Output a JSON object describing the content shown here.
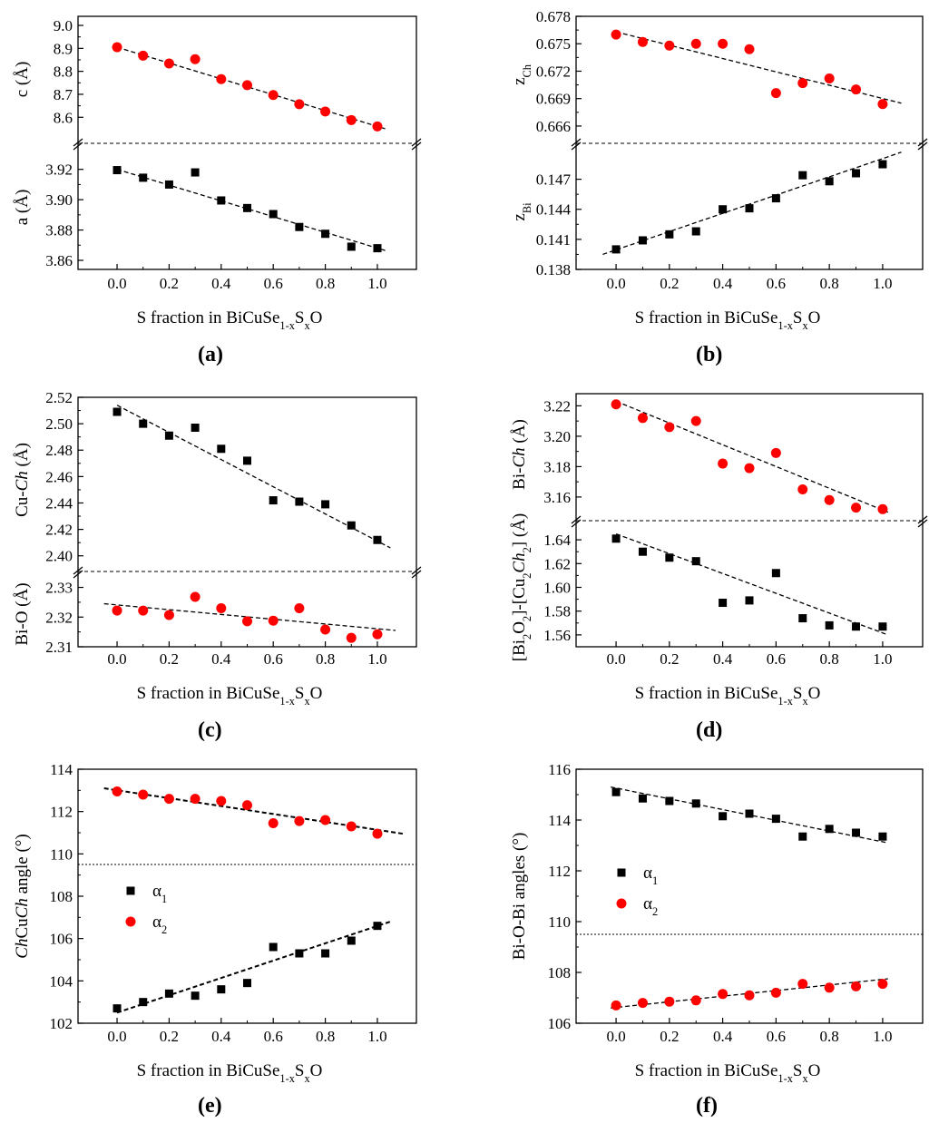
{
  "colors": {
    "series_square": "#000000",
    "series_circle": "#ff0000",
    "axis": "#000000"
  },
  "panel_labels": [
    "(a)",
    "(b)",
    "(c)",
    "(d)",
    "(e)",
    "(f)"
  ],
  "chart_data": [
    {
      "panel": "a",
      "type": "scatter",
      "xlabel": "S fraction in BiCuSe1-xSxO",
      "x_ticks": [
        "0.0",
        "0.2",
        "0.4",
        "0.6",
        "0.8",
        "1.0"
      ],
      "xlim": [
        -0.15,
        1.15
      ],
      "subplots": [
        {
          "ylabel": "c (Å)",
          "ylim": [
            8.53,
            9.0
          ],
          "y_ticks": [
            "8.6",
            "8.7",
            "8.8",
            "8.9",
            "9.0"
          ],
          "series": [
            {
              "name": "c",
              "marker": "circle",
              "color": "#ff0000",
              "x": [
                0,
                0.1,
                0.2,
                0.3,
                0.4,
                0.5,
                0.6,
                0.7,
                0.8,
                0.9,
                1.0
              ],
              "y": [
                8.905,
                8.868,
                8.834,
                8.853,
                8.766,
                8.74,
                8.697,
                8.657,
                8.625,
                8.588,
                8.56
              ]
            }
          ],
          "fit": {
            "x": [
              0,
              1.03
            ],
            "y": [
              8.905,
              8.55
            ]
          }
        },
        {
          "ylabel": "a (Å)",
          "ylim": [
            3.86,
            3.93
          ],
          "y_ticks": [
            "3.86",
            "3.88",
            "3.90",
            "3.92"
          ],
          "series": [
            {
              "name": "a",
              "marker": "square",
              "color": "#000000",
              "x": [
                0,
                0.1,
                0.2,
                0.3,
                0.4,
                0.5,
                0.6,
                0.7,
                0.8,
                0.9,
                1.0
              ],
              "y": [
                3.9195,
                3.9145,
                3.91,
                3.918,
                3.8995,
                3.8945,
                3.8905,
                3.882,
                3.8775,
                3.869,
                3.868
              ]
            }
          ],
          "fit": {
            "x": [
              0,
              1.03
            ],
            "y": [
              3.92,
              3.8665
            ]
          }
        }
      ]
    },
    {
      "panel": "b",
      "type": "scatter",
      "xlabel": "S fraction in BiCuSe1-xSxO",
      "x_ticks": [
        "0.0",
        "0.2",
        "0.4",
        "0.6",
        "0.8",
        "1.0"
      ],
      "xlim": [
        -0.15,
        1.15
      ],
      "subplots": [
        {
          "ylabel": "zCh",
          "ylim": [
            0.6652,
            0.678
          ],
          "y_ticks": [
            "0.666",
            "0.669",
            "0.672",
            "0.675",
            "0.678"
          ],
          "series": [
            {
              "name": "zCh",
              "marker": "circle",
              "color": "#ff0000",
              "x": [
                0,
                0.1,
                0.2,
                0.3,
                0.4,
                0.5,
                0.6,
                0.7,
                0.8,
                0.9,
                1.0
              ],
              "y": [
                0.676,
                0.6752,
                0.6748,
                0.675,
                0.675,
                0.6744,
                0.6696,
                0.6707,
                0.6712,
                0.67,
                0.6684
              ]
            }
          ],
          "fit": {
            "x": [
              0,
              1.07
            ],
            "y": [
              0.6763,
              0.6685
            ]
          }
        },
        {
          "ylabel": "zBi",
          "ylim": [
            0.138,
            0.1495
          ],
          "y_ticks": [
            "0.138",
            "0.141",
            "0.144",
            "0.147"
          ],
          "series": [
            {
              "name": "zBi",
              "marker": "square",
              "color": "#000000",
              "x": [
                0,
                0.1,
                0.2,
                0.3,
                0.4,
                0.5,
                0.6,
                0.7,
                0.8,
                0.9,
                1.0
              ],
              "y": [
                0.14,
                0.1409,
                0.1415,
                0.1418,
                0.144,
                0.1441,
                0.1451,
                0.1474,
                0.1468,
                0.1476,
                0.1485
              ]
            }
          ],
          "fit": {
            "x": [
              -0.05,
              1.07
            ],
            "y": [
              0.1395,
              0.1497
            ]
          }
        }
      ]
    },
    {
      "panel": "c",
      "type": "scatter",
      "xlabel": "S fraction in BiCuSe1-xSxO",
      "x_ticks": [
        "0.0",
        "0.2",
        "0.4",
        "0.6",
        "0.8",
        "1.0"
      ],
      "xlim": [
        -0.15,
        1.15
      ],
      "subplots": [
        {
          "ylabel": "Cu-Ch (Å)",
          "ylim": [
            2.395,
            2.52
          ],
          "y_ticks": [
            "2.40",
            "2.42",
            "2.44",
            "2.46",
            "2.48",
            "2.50",
            "2.52"
          ],
          "series": [
            {
              "name": "Cu-Ch",
              "marker": "square",
              "color": "#000000",
              "x": [
                0,
                0.1,
                0.2,
                0.3,
                0.4,
                0.5,
                0.6,
                0.7,
                0.8,
                0.9,
                1.0
              ],
              "y": [
                2.509,
                2.5,
                2.491,
                2.497,
                2.481,
                2.472,
                2.442,
                2.441,
                2.439,
                2.423,
                2.412
              ]
            }
          ],
          "fit": {
            "x": [
              0,
              1.05
            ],
            "y": [
              2.514,
              2.406
            ]
          }
        },
        {
          "ylabel": "Bi-O (Å)",
          "ylim": [
            2.31,
            2.332
          ],
          "y_ticks": [
            "2.31",
            "2.32",
            "2.33"
          ],
          "series": [
            {
              "name": "Bi-O",
              "marker": "circle",
              "color": "#ff0000",
              "x": [
                0,
                0.1,
                0.2,
                0.3,
                0.4,
                0.5,
                0.6,
                0.7,
                0.8,
                0.9,
                1.0
              ],
              "y": [
                2.3222,
                2.3222,
                2.3207,
                2.3268,
                2.323,
                2.3186,
                2.3188,
                2.323,
                2.3158,
                2.313,
                2.3142
              ]
            }
          ],
          "fit": {
            "x": [
              -0.05,
              1.07
            ],
            "y": [
              2.3245,
              2.3155
            ]
          }
        }
      ]
    },
    {
      "panel": "d",
      "type": "scatter",
      "xlabel": "S fraction in BiCuSe1-xSxO",
      "x_ticks": [
        "0.0",
        "0.2",
        "0.4",
        "0.6",
        "0.8",
        "1.0"
      ],
      "xlim": [
        -0.15,
        1.15
      ],
      "subplots": [
        {
          "ylabel": "Bi-Ch (Å)",
          "ylim": [
            3.148,
            3.228
          ],
          "y_ticks": [
            "3.16",
            "3.18",
            "3.20",
            "3.22"
          ],
          "series": [
            {
              "name": "Bi-Ch",
              "marker": "circle",
              "color": "#ff0000",
              "x": [
                0,
                0.1,
                0.2,
                0.3,
                0.4,
                0.5,
                0.6,
                0.7,
                0.8,
                0.9,
                1.0
              ],
              "y": [
                3.221,
                3.212,
                3.206,
                3.21,
                3.182,
                3.179,
                3.189,
                3.165,
                3.158,
                3.153,
                3.152
              ]
            }
          ],
          "fit": {
            "x": [
              0,
              1.02
            ],
            "y": [
              3.223,
              3.15
            ]
          }
        },
        {
          "ylabel": "[Bi2O2]-[Cu2Ch2] (Å)",
          "ylim": [
            1.55,
            1.65
          ],
          "y_ticks": [
            "1.56",
            "1.58",
            "1.60",
            "1.62",
            "1.64"
          ],
          "series": [
            {
              "name": "[Bi2O2]-[Cu2Ch2]",
              "marker": "square",
              "color": "#000000",
              "x": [
                0,
                0.1,
                0.2,
                0.3,
                0.4,
                0.5,
                0.6,
                0.7,
                0.8,
                0.9,
                1.0
              ],
              "y": [
                1.641,
                1.63,
                1.625,
                1.622,
                1.587,
                1.589,
                1.612,
                1.574,
                1.568,
                1.567,
                1.567
              ]
            }
          ],
          "fit": {
            "x": [
              0,
              1.02
            ],
            "y": [
              1.645,
              1.56
            ]
          }
        }
      ]
    },
    {
      "panel": "e",
      "type": "scatter",
      "xlabel": "S fraction in BiCuSe1-xSxO",
      "ylabel": "ChCuCh angle (°)",
      "x_ticks": [
        "0.0",
        "0.2",
        "0.4",
        "0.6",
        "0.8",
        "1.0"
      ],
      "xlim": [
        -0.15,
        1.15
      ],
      "ylim": [
        102,
        114
      ],
      "y_ticks": [
        "102",
        "104",
        "106",
        "108",
        "110",
        "112",
        "114"
      ],
      "reference_line": 109.5,
      "legend": [
        "α1",
        "α2"
      ],
      "series": [
        {
          "name": "α1",
          "marker": "square",
          "color": "#000000",
          "x": [
            0,
            0.1,
            0.2,
            0.3,
            0.4,
            0.5,
            0.6,
            0.7,
            0.8,
            0.9,
            1.0
          ],
          "y": [
            102.7,
            103.0,
            103.4,
            103.3,
            103.6,
            103.9,
            105.6,
            105.3,
            105.3,
            105.9,
            106.6
          ],
          "fit": {
            "x": [
              0,
              1.05
            ],
            "y": [
              102.5,
              106.8
            ]
          }
        },
        {
          "name": "α2",
          "marker": "circle",
          "color": "#ff0000",
          "x": [
            0,
            0.1,
            0.2,
            0.3,
            0.4,
            0.5,
            0.6,
            0.7,
            0.8,
            0.9,
            1.0
          ],
          "y": [
            112.95,
            112.8,
            112.6,
            112.6,
            112.5,
            112.3,
            111.45,
            111.55,
            111.6,
            111.3,
            110.95
          ],
          "fit": {
            "x": [
              -0.05,
              1.1
            ],
            "y": [
              113.1,
              110.95
            ]
          }
        }
      ]
    },
    {
      "panel": "f",
      "type": "scatter",
      "xlabel": "S fraction in BiCuSe1-xSxO",
      "ylabel": "Bi-O-Bi angles (°)",
      "x_ticks": [
        "0.0",
        "0.2",
        "0.4",
        "0.6",
        "0.8",
        "1.0"
      ],
      "xlim": [
        -0.15,
        1.15
      ],
      "ylim": [
        106,
        116
      ],
      "y_ticks": [
        "106",
        "108",
        "110",
        "112",
        "114",
        "116"
      ],
      "reference_line": 109.5,
      "legend": [
        "α1",
        "α2"
      ],
      "series": [
        {
          "name": "α1",
          "marker": "square",
          "color": "#000000",
          "x": [
            0,
            0.1,
            0.2,
            0.3,
            0.4,
            0.5,
            0.6,
            0.7,
            0.8,
            0.9,
            1.0
          ],
          "y": [
            115.1,
            114.85,
            114.75,
            114.65,
            114.15,
            114.25,
            114.05,
            113.35,
            113.65,
            113.5,
            113.35
          ],
          "fit": {
            "x": [
              -0.02,
              1.02
            ],
            "y": [
              115.3,
              113.1
            ]
          }
        },
        {
          "name": "α2",
          "marker": "circle",
          "color": "#ff0000",
          "x": [
            0,
            0.1,
            0.2,
            0.3,
            0.4,
            0.5,
            0.6,
            0.7,
            0.8,
            0.9,
            1.0
          ],
          "y": [
            106.7,
            106.8,
            106.85,
            106.9,
            107.15,
            107.1,
            107.2,
            107.55,
            107.4,
            107.45,
            107.55
          ],
          "fit": {
            "x": [
              -0.02,
              1.02
            ],
            "y": [
              106.6,
              107.75
            ]
          }
        }
      ]
    }
  ]
}
